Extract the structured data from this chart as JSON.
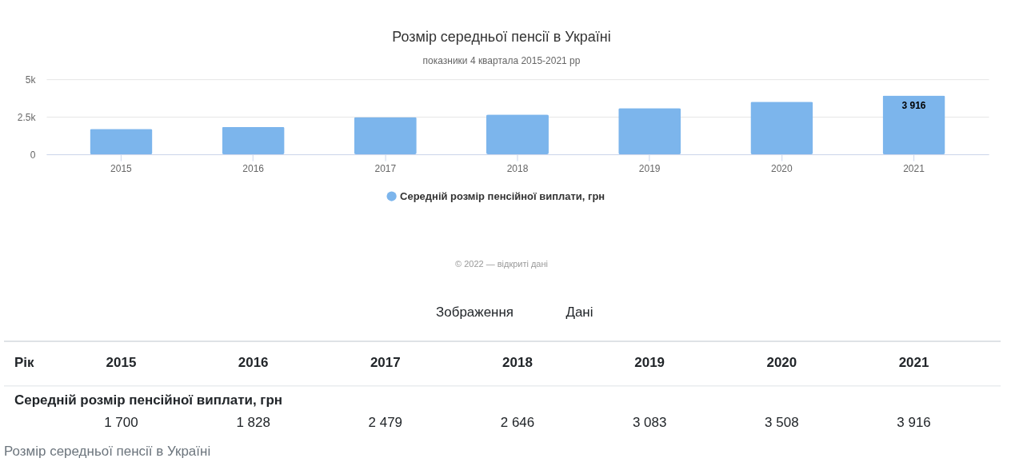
{
  "chart_data": {
    "type": "bar",
    "title": "Розмір середньої пенсії в Україні",
    "subtitle": "показники 4 квартала 2015-2021 рр",
    "categories": [
      "2015",
      "2016",
      "2017",
      "2018",
      "2019",
      "2020",
      "2021"
    ],
    "series": [
      {
        "name": "Середній розмір пенсійної виплати, грн",
        "color": "#7cb5ec",
        "values": [
          1700,
          1828,
          2479,
          2646,
          3083,
          3508,
          3916
        ],
        "value_labels": [
          "1 700",
          "1 828",
          "2 479",
          "2 646",
          "3 083",
          "3 508",
          "3 916"
        ]
      }
    ],
    "ylim": [
      0,
      5000
    ],
    "yticks": [
      0,
      {
        "value": 2500,
        "label": "2.5k"
      },
      {
        "value": 5000,
        "label": "5k"
      }
    ],
    "grid": "y",
    "legend": "bottom",
    "annotations": [
      {
        "text": "3 916",
        "x": "2021",
        "y": 3916
      },
      "© 2022 — відкриті дані",
      "Зображення",
      "Дані",
      "Рік",
      "Розмір середньої пенсії в Україні"
    ]
  }
}
